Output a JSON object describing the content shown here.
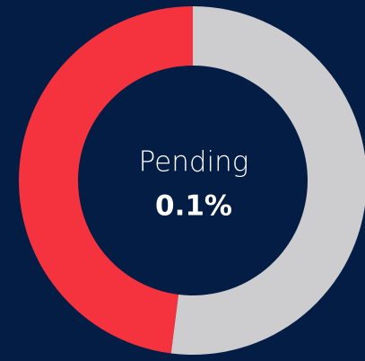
{
  "chart_data": {
    "type": "donut",
    "values": [
      52,
      48
    ],
    "colors": [
      "#cdcdd0",
      "#f5333f"
    ],
    "center_label": "Pending",
    "center_value": "0.1%",
    "start_angle": 0,
    "direction": "clockwise"
  }
}
